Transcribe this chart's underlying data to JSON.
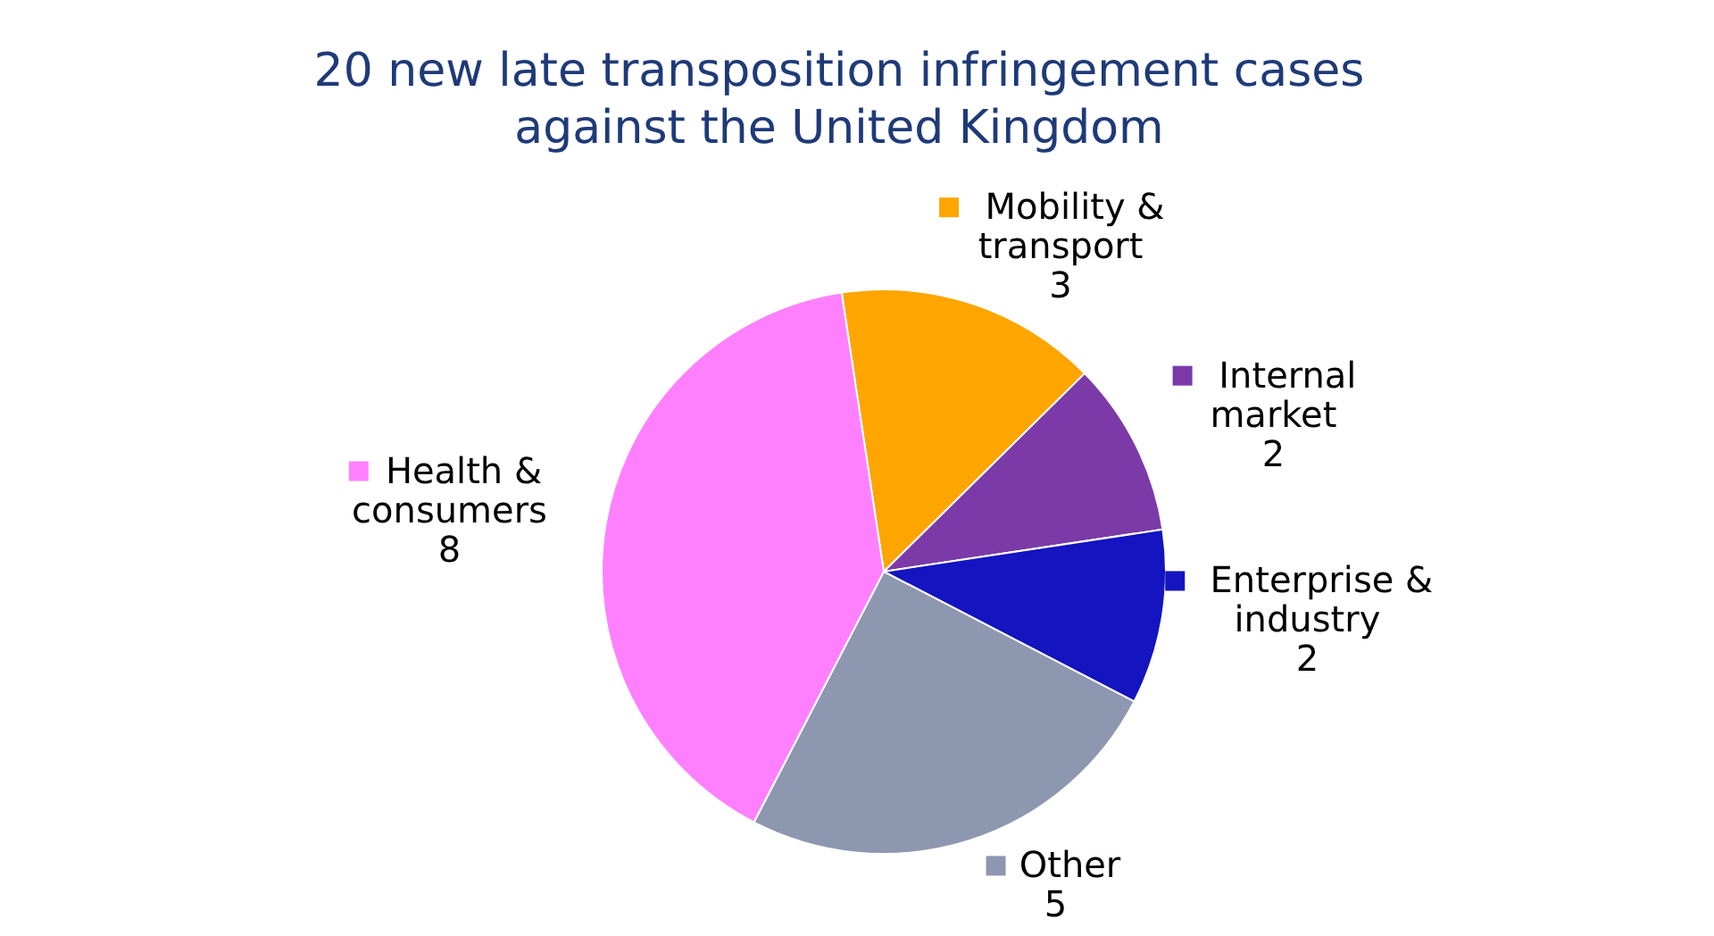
{
  "chart_data": {
    "type": "pie",
    "title": "20 new late transposition infringement cases against the United Kingdom",
    "categories": [
      "Mobility & transport",
      "Internal market",
      "Enterprise & industry",
      "Other",
      "Health & consumers"
    ],
    "values": [
      3,
      2,
      2,
      5,
      8
    ],
    "colors": [
      "#ffa500",
      "#7b3aa8",
      "#1414c0",
      "#8e97b0",
      "#ff80ff"
    ],
    "data_labels": true,
    "legend": "top left"
  }
}
